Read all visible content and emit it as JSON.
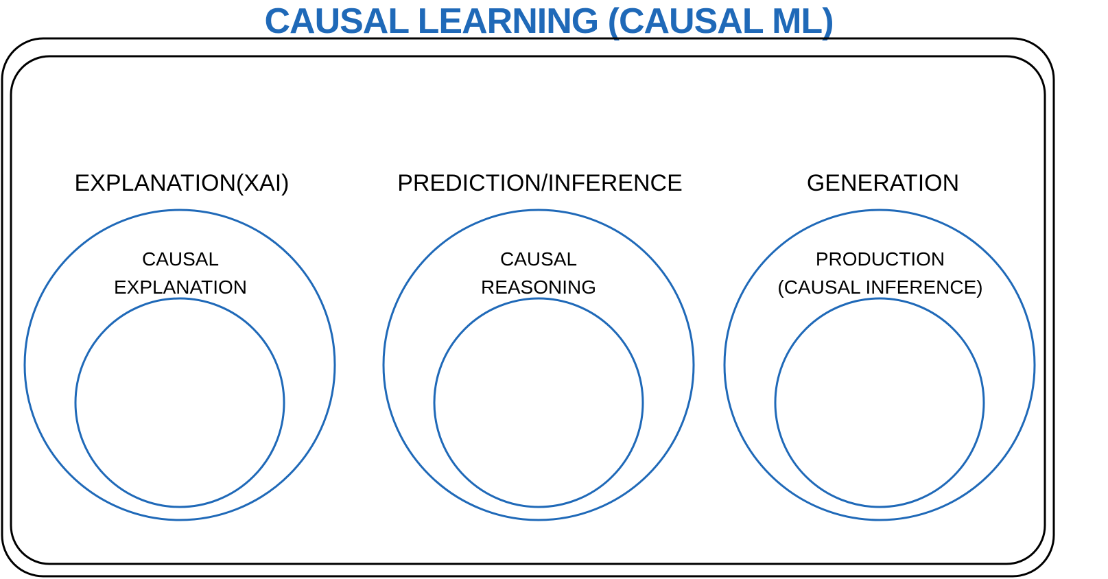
{
  "title": "CAUSAL LEARNING (CAUSAL ML)",
  "colors": {
    "title": "#1f69b8",
    "circle_stroke": "#1f69b8",
    "frame_stroke": "#000000",
    "text": "#000000"
  },
  "sections": [
    {
      "label": "EXPLANATION(XAI)",
      "inner_label": [
        "CAUSAL",
        "EXPLANATION"
      ]
    },
    {
      "label": "PREDICTION/INFERENCE",
      "inner_label": [
        "CAUSAL",
        "REASONING"
      ]
    },
    {
      "label": "GENERATION",
      "inner_label": [
        "PRODUCTION",
        "(CAUSAL INFERENCE)"
      ]
    }
  ]
}
